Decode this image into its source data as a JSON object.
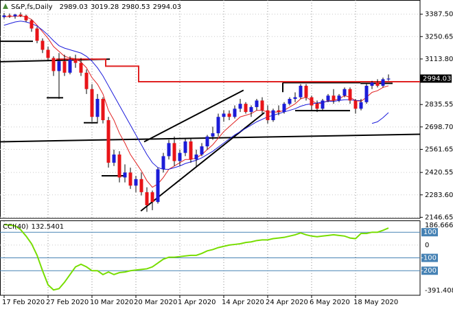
{
  "chart_data": [
    {
      "type": "candlestick",
      "title": "S&P,fs,Daily",
      "categories": [
        "17 Feb 2020",
        null,
        null,
        null,
        null,
        null,
        null,
        null,
        "27 Feb 2020",
        null,
        null,
        null,
        null,
        null,
        null,
        null,
        "10 Mar 2020",
        null,
        null,
        null,
        null,
        null,
        null,
        null,
        "20 Mar 2020",
        null,
        null,
        null,
        null,
        null,
        null,
        null,
        "1 Apr 2020",
        null,
        null,
        null,
        null,
        null,
        null,
        null,
        "14 Apr 2020",
        null,
        null,
        null,
        null,
        null,
        null,
        null,
        "24 Apr 2020",
        null,
        null,
        null,
        null,
        null,
        null,
        null,
        "6 May 2020",
        null,
        null,
        null,
        null,
        null,
        null,
        null,
        "18 May 2020",
        null,
        null,
        null,
        null,
        null,
        null
      ],
      "open": [
        3370,
        3380,
        3375,
        3385,
        3378,
        3350,
        3300,
        3225,
        3170,
        3120,
        3040,
        3100,
        3030,
        3110,
        3090,
        3030,
        2930,
        2760,
        2870,
        2740,
        2480,
        2530,
        2390,
        2420,
        2340,
        2380,
        2300,
        2300,
        2240,
        2440,
        2520,
        2600,
        2490,
        2540,
        2610,
        2500,
        2530,
        2580,
        2640,
        2660,
        2760,
        2780,
        2760,
        2810,
        2840,
        2790,
        2820,
        2860,
        2800,
        2740,
        2800,
        2790,
        2840,
        2870,
        2880,
        2950,
        2880,
        2840,
        2810,
        2860,
        2890,
        2860,
        2890,
        2930,
        2860,
        2810,
        2850,
        2950,
        2970,
        2950,
        2989.03
      ],
      "high": [
        3395,
        3392,
        3390,
        3398,
        3385,
        3355,
        3310,
        3240,
        3190,
        3130,
        3150,
        3140,
        3130,
        3140,
        3120,
        3050,
        2960,
        2900,
        2880,
        2760,
        2560,
        2550,
        2470,
        2450,
        2400,
        2420,
        2330,
        2310,
        2450,
        2540,
        2620,
        2640,
        2560,
        2630,
        2630,
        2560,
        2600,
        2650,
        2700,
        2780,
        2800,
        2800,
        2830,
        2870,
        2850,
        2830,
        2870,
        2880,
        2830,
        2810,
        2830,
        2850,
        2880,
        2910,
        2960,
        2960,
        2890,
        2860,
        2870,
        2900,
        2930,
        2900,
        2940,
        2940,
        2870,
        2870,
        2960,
        2980,
        2990,
        3000,
        3019.28
      ],
      "low": [
        3360,
        3365,
        3360,
        3370,
        3340,
        3280,
        3210,
        3150,
        3100,
        3010,
        2870,
        3010,
        3020,
        3060,
        3010,
        2900,
        2730,
        2720,
        2720,
        2450,
        2460,
        2360,
        2360,
        2320,
        2300,
        2280,
        2180,
        2190,
        2230,
        2420,
        2500,
        2460,
        2460,
        2520,
        2480,
        2450,
        2520,
        2560,
        2620,
        2640,
        2730,
        2740,
        2750,
        2790,
        2780,
        2760,
        2800,
        2780,
        2720,
        2730,
        2770,
        2780,
        2830,
        2850,
        2870,
        2860,
        2800,
        2790,
        2800,
        2850,
        2840,
        2850,
        2880,
        2840,
        2780,
        2800,
        2840,
        2930,
        2940,
        2940,
        2980.53
      ],
      "close": [
        3380,
        3375,
        3385,
        3378,
        3350,
        3300,
        3225,
        3170,
        3120,
        3040,
        3100,
        3030,
        3110,
        3090,
        3030,
        2930,
        2760,
        2870,
        2740,
        2480,
        2530,
        2390,
        2420,
        2340,
        2380,
        2300,
        2220,
        2240,
        2440,
        2520,
        2600,
        2490,
        2540,
        2610,
        2500,
        2530,
        2580,
        2640,
        2660,
        2760,
        2780,
        2760,
        2810,
        2840,
        2790,
        2820,
        2860,
        2800,
        2740,
        2800,
        2790,
        2840,
        2870,
        2880,
        2950,
        2880,
        2830,
        2810,
        2860,
        2890,
        2860,
        2890,
        2930,
        2860,
        2810,
        2850,
        2950,
        2970,
        2950,
        2990,
        2994.03
      ],
      "up_color": "#1c1cd8",
      "down_color": "#e81418",
      "wick_color": "#000000",
      "overlays": [
        {
          "color": "#e02020",
          "width": 1,
          "values": [
            3372,
            3373,
            3375,
            3376,
            3372,
            3355,
            3320,
            3280,
            3240,
            3190,
            3160,
            3130,
            3120,
            3115,
            3095,
            3060,
            3000,
            2960,
            2900,
            2800,
            2740,
            2660,
            2600,
            2530,
            2480,
            2430,
            2370,
            2330,
            2350,
            2390,
            2440,
            2460,
            2480,
            2500,
            2500,
            2510,
            2530,
            2560,
            2590,
            2630,
            2670,
            2700,
            2730,
            2760,
            2770,
            2780,
            2800,
            2800,
            2790,
            2790,
            2790,
            2800,
            2820,
            2840,
            2870,
            2880,
            2860,
            2840,
            2845,
            2860,
            2860,
            2870,
            2890,
            2880,
            2860,
            2855,
            2880,
            2910,
            2920,
            2940,
            2950
          ]
        },
        {
          "color": "#1a1adb",
          "width": 1,
          "values": [
            3320,
            3330,
            3340,
            3345,
            3340,
            3330,
            3315,
            3290,
            3260,
            3225,
            3195,
            3180,
            3170,
            3160,
            3150,
            3130,
            3100,
            3060,
            3010,
            2950,
            2890,
            2830,
            2770,
            2710,
            2650,
            2590,
            2530,
            2480,
            2450,
            2440,
            2440,
            2450,
            2460,
            2475,
            2485,
            2495,
            2510,
            2530,
            2550,
            2575,
            2600,
            2625,
            2650,
            2670,
            2690,
            2710,
            2730,
            2745,
            2760,
            2770,
            2780,
            2790,
            2800,
            2810,
            2825,
            2835,
            2840,
            2845,
            2850,
            2855,
            2855,
            2860,
            2865,
            2865,
            2860,
            2860,
            null,
            2720,
            2730,
            2755,
            2786
          ]
        }
      ],
      "step_line": {
        "color": "#e02020",
        "values": [
          null,
          null,
          null,
          null,
          null,
          null,
          null,
          null,
          null,
          null,
          3113,
          3113,
          3113,
          3113,
          3113,
          3113,
          3113,
          3113,
          3113,
          3070,
          3070,
          3070,
          3070,
          3070,
          3070,
          2975,
          2975,
          2975,
          2975,
          2975,
          2975,
          2975,
          2975,
          2975,
          2975,
          2975,
          2975,
          2975,
          2975,
          2975,
          2975,
          2975,
          2975,
          2975,
          2975,
          2975,
          2975,
          2975,
          2975,
          2975,
          2975,
          2975,
          2975,
          2975,
          2975,
          2975,
          2975,
          2975,
          2975,
          2975,
          2975,
          2975,
          2975,
          2975,
          2975,
          2975,
          2975,
          2975,
          2975,
          2975,
          2975
        ]
      },
      "trendlines": [
        {
          "points": [
            [
              -0.75,
              3222
            ],
            [
              5.25,
              3222
            ]
          ]
        },
        {
          "points": [
            [
              -0.75,
              3097
            ],
            [
              19.25,
              3113
            ]
          ]
        },
        {
          "points": [
            [
              7.75,
              2877
            ],
            [
              10.75,
              2877
            ]
          ]
        },
        {
          "points": [
            [
              14.5,
              2724
            ],
            [
              17,
              2724
            ]
          ]
        },
        {
          "points": [
            [
              17.75,
              2400
            ],
            [
              21.75,
              2400
            ]
          ]
        },
        {
          "points": [
            [
              24.9,
              2185
            ],
            [
              47.4,
              2786
            ]
          ]
        },
        {
          "points": [
            [
              25.5,
              2608
            ],
            [
              43.6,
              2923
            ]
          ]
        },
        {
          "points": [
            [
              -0.75,
              2608
            ],
            [
              75.75,
              2654
            ]
          ]
        },
        {
          "points": [
            [
              50.75,
              2969
            ],
            [
              64.9,
              2969
            ]
          ]
        },
        {
          "points": [
            [
              50.75,
              2969
            ],
            [
              50.75,
              2911
            ]
          ]
        },
        {
          "points": [
            [
              53,
              2798
            ],
            [
              63,
              2798
            ]
          ]
        },
        {
          "points": [
            [
              64.9,
              2965
            ],
            [
              70.75,
              2965
            ]
          ]
        }
      ],
      "ylim": [
        2140,
        3470
      ],
      "yticks": [
        {
          "value": 3387.5,
          "label": "3387.50"
        },
        3250.65,
        {
          "value": 3113.8,
          "label": "3113.80"
        },
        2835.55,
        {
          "value": 2698.7,
          "label": "2698.70"
        },
        2561.65,
        2420.55,
        {
          "value": 2283.6,
          "label": "2283.60"
        },
        2146.65
      ],
      "grid": true
    },
    {
      "type": "line",
      "title": "CCI(40)",
      "color": "#77dd00",
      "values": [
        160,
        155,
        150,
        120,
        70,
        10,
        -80,
        -200,
        -310,
        -350,
        -340,
        -290,
        -230,
        -170,
        -150,
        -170,
        -200,
        -200,
        -230,
        -210,
        -230,
        -215,
        -210,
        -200,
        -195,
        -190,
        -185,
        -170,
        -140,
        -110,
        -95,
        -95,
        -90,
        -85,
        -80,
        -80,
        -65,
        -45,
        -35,
        -20,
        -10,
        0,
        5,
        10,
        20,
        25,
        35,
        40,
        40,
        50,
        55,
        60,
        70,
        80,
        95,
        80,
        70,
        65,
        70,
        75,
        80,
        75,
        70,
        55,
        50,
        90,
        90,
        100,
        100,
        115,
        132.5401
      ],
      "ylim": [
        -391.4081,
        186.6663
      ],
      "yticks": [
        0
      ],
      "levels": [
        100,
        -100,
        -200
      ],
      "level_color": "#4682b4"
    }
  ]
}
